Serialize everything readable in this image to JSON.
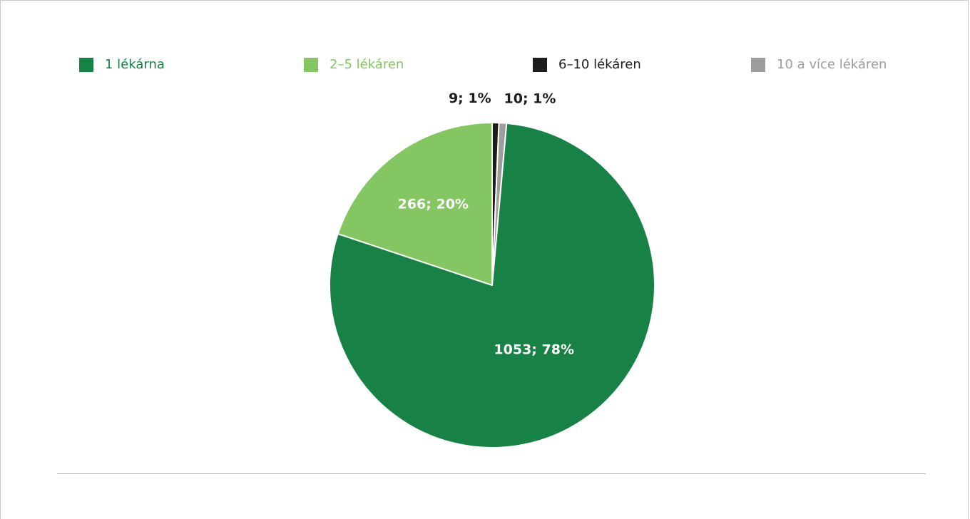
{
  "chart_data": {
    "type": "pie",
    "title": "",
    "series": [
      {
        "name": "1 lékárna",
        "value": 1053,
        "percent": 78,
        "label": "1053; 78%",
        "color": "#178146",
        "label_color": "#ffffff"
      },
      {
        "name": "2–5 lékáren",
        "value": 266,
        "percent": 20,
        "label": "266; 20%",
        "color": "#84c662",
        "label_color": "#ffffff"
      },
      {
        "name": "6–10 lékáren",
        "value": 9,
        "percent": 1,
        "label": "9; 1%",
        "color": "#1d1d1b",
        "label_color": "#1d1d1b"
      },
      {
        "name": "10 a více lékáren",
        "value": 10,
        "percent": 1,
        "label": "10; 1%",
        "color": "#9d9d9c",
        "label_color": "#1d1d1b"
      }
    ],
    "order_clockwise_from_top": [
      "6–10 lékáren",
      "10 a více lékáren",
      "1 lékárna",
      "2–5 lékáren"
    ],
    "legend_position": "top",
    "legend_text_colors": [
      "#178146",
      "#84c662",
      "#1d1d1b",
      "#9d9d9c"
    ]
  }
}
